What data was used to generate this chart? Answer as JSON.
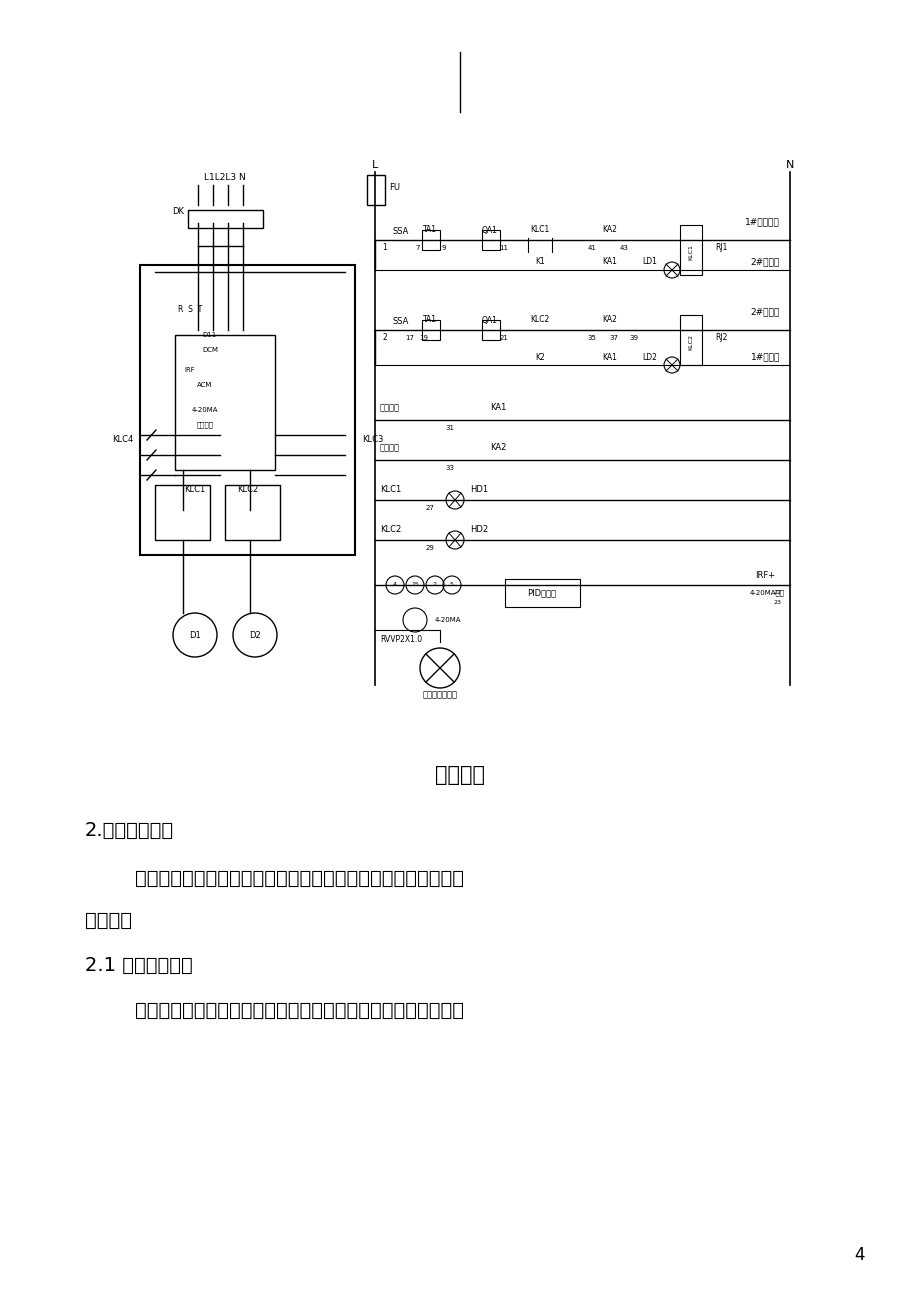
{
  "page_width": 9.2,
  "page_height": 13.02,
  "background_color": "#ffffff",
  "caption": "图（二）",
  "section2_title": "2.变频器的应用",
  "paragraph1": "        变频器在应用过程中有效的修改参数，可以使设备工作更接近理",
  "paragraph1b": "想状态。",
  "section21_title": "2.1 设置上限频率",
  "paragraph2": "        由于我们设备安装的年限不同，电动机与变频器常常不配套。如",
  "page_number": "4"
}
